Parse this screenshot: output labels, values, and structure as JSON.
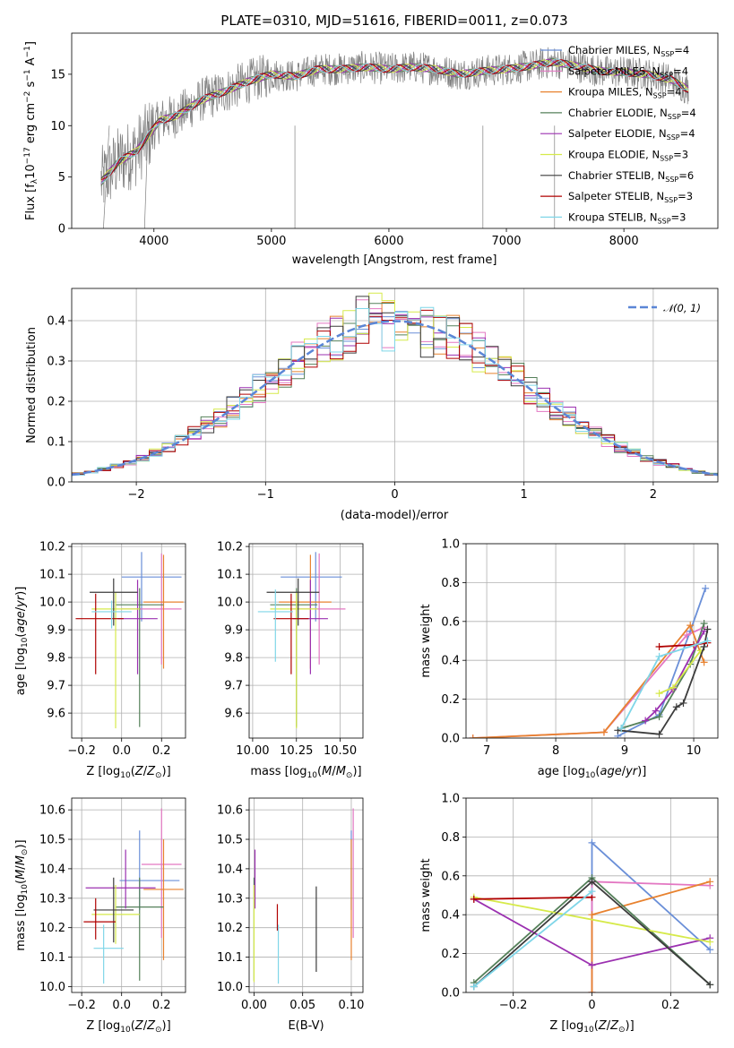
{
  "title": "PLATE=0310, MJD=51616, FIBERID=0011, z=0.073",
  "colors": {
    "data": "#808080",
    "Chabrier MILES": "#6a8fd8",
    "Salpeter MILES": "#e377c2",
    "Kroupa MILES": "#e8822f",
    "Chabrier ELODIE": "#55805a",
    "Salpeter ELODIE": "#9b30b0",
    "Kroupa ELODIE": "#d6ea4a",
    "Chabrier STELIB": "#3c3c3c",
    "Salpeter STELIB": "#b00000",
    "Kroupa STELIB": "#7fd6e8",
    "gauss": "#5b86d6"
  },
  "legend_spectrum": [
    "Chabrier MILES, N_SSP=4",
    "Salpeter MILES, N_SSP=4",
    "Kroupa MILES, N_SSP=4",
    "Chabrier ELODIE, N_SSP=4",
    "Salpeter ELODIE, N_SSP=4",
    "Kroupa ELODIE, N_SSP=3",
    "Chabrier STELIB, N_SSP=6",
    "Salpeter STELIB, N_SSP=3",
    "Kroupa STELIB, N_SSP=3"
  ],
  "legend_hist": "𝒩(0, 1)",
  "chart_data": [
    {
      "type": "line",
      "panel": "spectrum",
      "xlabel": "wavelength [Angstrom, rest frame]",
      "ylabel": "Flux [f_λ 10^-17 erg cm^-2 s^-1 A^-1]",
      "xlim": [
        3300,
        8800
      ],
      "ylim": [
        0,
        19
      ],
      "xticks": [
        4000,
        5000,
        6000,
        7000,
        8000
      ],
      "yticks": [
        0,
        5,
        10,
        15
      ],
      "continuum": [
        [
          3550,
          4.5
        ],
        [
          3700,
          6.5
        ],
        [
          3850,
          7.5
        ],
        [
          3950,
          9.0
        ],
        [
          4050,
          10.5
        ],
        [
          4200,
          11.0
        ],
        [
          4400,
          12.5
        ],
        [
          4600,
          13.3
        ],
        [
          4800,
          14.3
        ],
        [
          5000,
          15.0
        ],
        [
          5200,
          14.8
        ],
        [
          5400,
          15.5
        ],
        [
          5600,
          15.5
        ],
        [
          5800,
          15.7
        ],
        [
          6000,
          15.5
        ],
        [
          6200,
          15.7
        ],
        [
          6400,
          15.5
        ],
        [
          6600,
          15.0
        ],
        [
          6800,
          15.3
        ],
        [
          7000,
          15.5
        ],
        [
          7200,
          15.8
        ],
        [
          7400,
          16.2
        ],
        [
          7600,
          15.8
        ],
        [
          7800,
          15.3
        ],
        [
          8000,
          15.2
        ],
        [
          8200,
          15.0
        ],
        [
          8400,
          14.5
        ],
        [
          8550,
          13.5
        ]
      ]
    },
    {
      "type": "bar",
      "panel": "residual-histogram",
      "xlabel": "(data-model)/error",
      "ylabel": "Normed distribution",
      "xlim": [
        -2.5,
        2.5
      ],
      "ylim": [
        0,
        0.48
      ],
      "xticks": [
        -2,
        -1,
        0,
        1,
        2
      ],
      "yticks": [
        0.0,
        0.1,
        0.2,
        0.3,
        0.4
      ],
      "bin_width": 0.1,
      "mean_profile": [
        0.02,
        0.025,
        0.028,
        0.033,
        0.038,
        0.045,
        0.05,
        0.058,
        0.065,
        0.072,
        0.078,
        0.085,
        0.092,
        0.1,
        0.108,
        0.118,
        0.128,
        0.14,
        0.152,
        0.164,
        0.176,
        0.19,
        0.205,
        0.22,
        0.235,
        0.25,
        0.265,
        0.28,
        0.295,
        0.31,
        0.322,
        0.335,
        0.348,
        0.36,
        0.372,
        0.38,
        0.388,
        0.392,
        0.395,
        0.398,
        0.4,
        0.395,
        0.39,
        0.385,
        0.38,
        0.375,
        0.37,
        0.362,
        0.355,
        0.345,
        0.335,
        0.325,
        0.312,
        0.3,
        0.288,
        0.275,
        0.262,
        0.248,
        0.235,
        0.22,
        0.205,
        0.19,
        0.178,
        0.165,
        0.152,
        0.14,
        0.128,
        0.118,
        0.108,
        0.098,
        0.09,
        0.082,
        0.075,
        0.068,
        0.062,
        0.055,
        0.05,
        0.045,
        0.04,
        0.035,
        0.032,
        0.028,
        0.025,
        0.022,
        0.02,
        0.018,
        0.016,
        0.015,
        0.014,
        0.012,
        0.011,
        0.01,
        0.009,
        0.008,
        0.007,
        0.006,
        0.006,
        0.005,
        0.005,
        0.004
      ],
      "gaussian": {
        "mean": 0,
        "sigma": 1
      }
    },
    {
      "type": "scatter",
      "panel": "age-vs-Z",
      "xlabel": "Z [log10(Z/Z⊙)]",
      "ylabel": "age [log10(age/yr)]",
      "xlim": [
        -0.25,
        0.32
      ],
      "ylim": [
        9.51,
        10.21
      ],
      "xticks": [
        -0.2,
        0.0,
        0.2
      ],
      "yticks": [
        9.6,
        9.7,
        9.8,
        9.9,
        10.0,
        10.1,
        10.2
      ],
      "points": [
        {
          "model": "Chabrier MILES",
          "x": 0.1,
          "xerr": [
            0.1,
            0.2
          ],
          "y": 10.09,
          "yerr": [
            0.16,
            0.09
          ]
        },
        {
          "model": "Salpeter MILES",
          "x": 0.2,
          "xerr": [
            0.2,
            0.1
          ],
          "y": 9.975,
          "yerr": [
            0.2,
            0.2
          ]
        },
        {
          "model": "Kroupa MILES",
          "x": 0.21,
          "xerr": [
            0.1,
            0.1
          ],
          "y": 10.0,
          "yerr": [
            0.24,
            0.17
          ]
        },
        {
          "model": "Chabrier ELODIE",
          "x": 0.09,
          "xerr": [
            0.12,
            0.12
          ],
          "y": 9.99,
          "yerr": [
            0.44,
            0.06
          ]
        },
        {
          "model": "Salpeter ELODIE",
          "x": 0.08,
          "xerr": [
            0.1,
            0.1
          ],
          "y": 9.94,
          "yerr": [
            0.2,
            0.14
          ]
        },
        {
          "model": "Kroupa ELODIE",
          "x": -0.03,
          "xerr": [
            0.12,
            0.12
          ],
          "y": 9.975,
          "yerr": [
            0.43,
            0.06
          ]
        },
        {
          "model": "Chabrier STELIB",
          "x": -0.04,
          "xerr": [
            0.12,
            0.12
          ],
          "y": 10.035,
          "yerr": [
            0.12,
            0.05
          ]
        },
        {
          "model": "Salpeter STELIB",
          "x": -0.13,
          "xerr": [
            0.1,
            0.14
          ],
          "y": 9.94,
          "yerr": [
            0.2,
            0.09
          ]
        },
        {
          "model": "Kroupa STELIB",
          "x": -0.05,
          "xerr": [
            0.1,
            0.1
          ],
          "y": 9.965,
          "yerr": [
            0.06,
            0.04
          ]
        }
      ]
    },
    {
      "type": "scatter",
      "panel": "age-vs-mass",
      "xlabel": "mass [log10(M/M⊙)]",
      "ylabel": "",
      "xlim": [
        9.98,
        10.63
      ],
      "ylim": [
        9.51,
        10.21
      ],
      "xticks": [
        10.0,
        10.25,
        10.5
      ],
      "yticks": [
        9.6,
        9.7,
        9.8,
        9.9,
        10.0,
        10.1,
        10.2
      ],
      "points": [
        {
          "model": "Chabrier MILES",
          "x": 10.36,
          "xerr": [
            0.2,
            0.15
          ],
          "y": 10.09,
          "yerr": [
            0.16,
            0.09
          ]
        },
        {
          "model": "Salpeter MILES",
          "x": 10.38,
          "xerr": [
            0.15,
            0.15
          ],
          "y": 9.975,
          "yerr": [
            0.2,
            0.2
          ]
        },
        {
          "model": "Kroupa MILES",
          "x": 10.33,
          "xerr": [
            0.18,
            0.12
          ],
          "y": 10.0,
          "yerr": [
            0.24,
            0.17
          ]
        },
        {
          "model": "Chabrier ELODIE",
          "x": 10.25,
          "xerr": [
            0.15,
            0.12
          ],
          "y": 9.99,
          "yerr": [
            0.44,
            0.06
          ]
        },
        {
          "model": "Salpeter ELODIE",
          "x": 10.33,
          "xerr": [
            0.1,
            0.1
          ],
          "y": 9.94,
          "yerr": [
            0.2,
            0.14
          ]
        },
        {
          "model": "Kroupa ELODIE",
          "x": 10.25,
          "xerr": [
            0.15,
            0.12
          ],
          "y": 9.975,
          "yerr": [
            0.43,
            0.06
          ]
        },
        {
          "model": "Chabrier STELIB",
          "x": 10.26,
          "xerr": [
            0.18,
            0.12
          ],
          "y": 10.035,
          "yerr": [
            0.12,
            0.05
          ]
        },
        {
          "model": "Salpeter STELIB",
          "x": 10.22,
          "xerr": [
            0.1,
            0.1
          ],
          "y": 9.94,
          "yerr": [
            0.2,
            0.09
          ]
        },
        {
          "model": "Kroupa STELIB",
          "x": 10.13,
          "xerr": [
            0.1,
            0.1
          ],
          "y": 9.965,
          "yerr": [
            0.18,
            0.08
          ]
        }
      ]
    },
    {
      "type": "line",
      "panel": "mass-weight-vs-age",
      "xlabel": "age [log10(age/yr)]",
      "ylabel": "mass weight",
      "xlim": [
        6.7,
        10.35
      ],
      "ylim": [
        0,
        1
      ],
      "xticks": [
        7,
        8,
        9,
        10
      ],
      "yticks": [
        0.0,
        0.2,
        0.4,
        0.6,
        0.8,
        1.0
      ],
      "series": [
        {
          "model": "Chabrier MILES",
          "x": [
            8.9,
            9.5,
            9.95,
            10.17
          ],
          "y": [
            0.01,
            0.12,
            0.55,
            0.77
          ]
        },
        {
          "model": "Salpeter MILES",
          "x": [
            6.8,
            8.7,
            9.9,
            10.15
          ],
          "y": [
            0.0,
            0.03,
            0.53,
            0.57
          ]
        },
        {
          "model": "Kroupa MILES",
          "x": [
            6.8,
            8.7,
            9.95,
            10.15
          ],
          "y": [
            0.0,
            0.03,
            0.58,
            0.39
          ]
        },
        {
          "model": "Chabrier ELODIE",
          "x": [
            8.95,
            9.5,
            9.95,
            10.15
          ],
          "y": [
            0.05,
            0.11,
            0.38,
            0.59
          ]
        },
        {
          "model": "Salpeter ELODIE",
          "x": [
            9.3,
            9.45,
            9.7,
            10.15
          ],
          "y": [
            0.09,
            0.14,
            0.25,
            0.55
          ]
        },
        {
          "model": "Kroupa ELODIE",
          "x": [
            9.5,
            9.7,
            10.1
          ],
          "y": [
            0.23,
            0.26,
            0.45
          ]
        },
        {
          "model": "Chabrier STELIB",
          "x": [
            8.9,
            9.5,
            9.75,
            9.85,
            10.15,
            10.2
          ],
          "y": [
            0.04,
            0.02,
            0.16,
            0.18,
            0.47,
            0.56
          ]
        },
        {
          "model": "Salpeter STELIB",
          "x": [
            9.5,
            10.0,
            10.2
          ],
          "y": [
            0.47,
            0.48,
            0.49
          ]
        },
        {
          "model": "Kroupa STELIB",
          "x": [
            8.95,
            9.5,
            10.2
          ],
          "y": [
            0.05,
            0.42,
            0.5
          ]
        }
      ]
    },
    {
      "type": "scatter",
      "panel": "mass-vs-Z",
      "xlabel": "Z [log10(Z/Z⊙)]",
      "ylabel": "mass [log10(M/M⊙)]",
      "xlim": [
        -0.25,
        0.32
      ],
      "ylim": [
        9.98,
        10.64
      ],
      "xticks": [
        -0.2,
        0.0,
        0.2
      ],
      "yticks": [
        10.0,
        10.1,
        10.2,
        10.3,
        10.4,
        10.5,
        10.6
      ],
      "points": [
        {
          "model": "Chabrier MILES",
          "x": 0.09,
          "xerr": [
            0.1,
            0.2
          ],
          "y": 10.36,
          "yerr": [
            0.1,
            0.17
          ]
        },
        {
          "model": "Salpeter MILES",
          "x": 0.2,
          "xerr": [
            0.1,
            0.1
          ],
          "y": 10.415,
          "yerr": [
            0.25,
            0.19
          ]
        },
        {
          "model": "Kroupa MILES",
          "x": 0.21,
          "xerr": [
            0.1,
            0.1
          ],
          "y": 10.33,
          "yerr": [
            0.24,
            0.17
          ]
        },
        {
          "model": "Chabrier ELODIE",
          "x": 0.09,
          "xerr": [
            0.12,
            0.12
          ],
          "y": 10.27,
          "yerr": [
            0.25,
            0.1
          ]
        },
        {
          "model": "Salpeter ELODIE",
          "x": 0.02,
          "xerr": [
            0.2,
            0.15
          ],
          "y": 10.335,
          "yerr": [
            0.07,
            0.13
          ]
        },
        {
          "model": "Kroupa ELODIE",
          "x": -0.03,
          "xerr": [
            0.12,
            0.12
          ],
          "y": 10.245,
          "yerr": [
            0.1,
            0.1
          ]
        },
        {
          "model": "Chabrier STELIB",
          "x": -0.04,
          "xerr": [
            0.1,
            0.1
          ],
          "y": 10.26,
          "yerr": [
            0.11,
            0.11
          ]
        },
        {
          "model": "Salpeter STELIB",
          "x": -0.13,
          "xerr": [
            0.06,
            0.1
          ],
          "y": 10.22,
          "yerr": [
            0.06,
            0.08
          ]
        },
        {
          "model": "Kroupa STELIB",
          "x": -0.09,
          "xerr": [
            0.05,
            0.1
          ],
          "y": 10.13,
          "yerr": [
            0.12,
            0.08
          ]
        }
      ]
    },
    {
      "type": "scatter",
      "panel": "mass-vs-EBV",
      "xlabel": "E(B-V)",
      "ylabel": "",
      "xlim": [
        -0.005,
        0.112
      ],
      "ylim": [
        9.98,
        10.64
      ],
      "xticks": [
        0.0,
        0.05,
        0.1
      ],
      "yticks": [
        10.0,
        10.1,
        10.2,
        10.3,
        10.4,
        10.5,
        10.6
      ],
      "points": [
        {
          "model": "Chabrier MILES",
          "x": 0.1,
          "y": 10.36,
          "yerr": [
            0.1,
            0.17
          ]
        },
        {
          "model": "Salpeter MILES",
          "x": 0.102,
          "y": 10.415,
          "yerr": [
            0.25,
            0.19
          ]
        },
        {
          "model": "Kroupa MILES",
          "x": 0.1,
          "y": 10.33,
          "yerr": [
            0.24,
            0.17
          ]
        },
        {
          "model": "Chabrier ELODIE",
          "x": 0.0,
          "y": 10.27,
          "yerr": [
            0.25,
            0.1
          ]
        },
        {
          "model": "Salpeter ELODIE",
          "x": 0.001,
          "y": 10.335,
          "yerr": [
            0.07,
            0.13
          ]
        },
        {
          "model": "Kroupa ELODIE",
          "x": 0.0,
          "y": 10.245,
          "yerr": [
            0.23,
            0.1
          ]
        },
        {
          "model": "Chabrier STELIB",
          "x": 0.064,
          "y": 10.2,
          "yerr": [
            0.15,
            0.14
          ]
        },
        {
          "model": "Salpeter STELIB",
          "x": 0.024,
          "y": 10.24,
          "yerr": [
            0.05,
            0.04
          ]
        },
        {
          "model": "Kroupa STELIB",
          "x": 0.025,
          "y": 10.13,
          "yerr": [
            0.12,
            0.08
          ]
        }
      ]
    },
    {
      "type": "line",
      "panel": "mass-weight-vs-Z",
      "xlabel": "Z [log10(Z/Z⊙)]",
      "ylabel": "mass weight",
      "xlim": [
        -0.32,
        0.32
      ],
      "ylim": [
        0,
        1
      ],
      "xticks": [
        -0.2,
        0.0,
        0.2
      ],
      "yticks": [
        0.0,
        0.2,
        0.4,
        0.6,
        0.8,
        1.0
      ],
      "series": [
        {
          "model": "Chabrier MILES",
          "x": [
            0.0,
            0.0,
            0.3
          ],
          "y": [
            0.0,
            0.77,
            0.22
          ]
        },
        {
          "model": "Salpeter MILES",
          "x": [
            0.0,
            0.0,
            0.3
          ],
          "y": [
            0.0,
            0.57,
            0.55
          ]
        },
        {
          "model": "Kroupa MILES",
          "x": [
            0.0,
            0.0,
            0.3
          ],
          "y": [
            0.0,
            0.4,
            0.57
          ]
        },
        {
          "model": "Chabrier ELODIE",
          "x": [
            -0.3,
            0.0,
            0.3
          ],
          "y": [
            0.05,
            0.59,
            0.04
          ]
        },
        {
          "model": "Salpeter ELODIE",
          "x": [
            -0.3,
            0.0,
            0.3
          ],
          "y": [
            0.48,
            0.14,
            0.28
          ]
        },
        {
          "model": "Kroupa ELODIE",
          "x": [
            -0.3,
            0.3
          ],
          "y": [
            0.49,
            0.26
          ]
        },
        {
          "model": "Chabrier STELIB",
          "x": [
            -0.3,
            0.0,
            0.3
          ],
          "y": [
            0.03,
            0.57,
            0.04
          ]
        },
        {
          "model": "Salpeter STELIB",
          "x": [
            -0.3,
            0.0
          ],
          "y": [
            0.48,
            0.49
          ]
        },
        {
          "model": "Kroupa STELIB",
          "x": [
            -0.3,
            0.0
          ],
          "y": [
            0.03,
            0.52
          ]
        }
      ]
    }
  ]
}
